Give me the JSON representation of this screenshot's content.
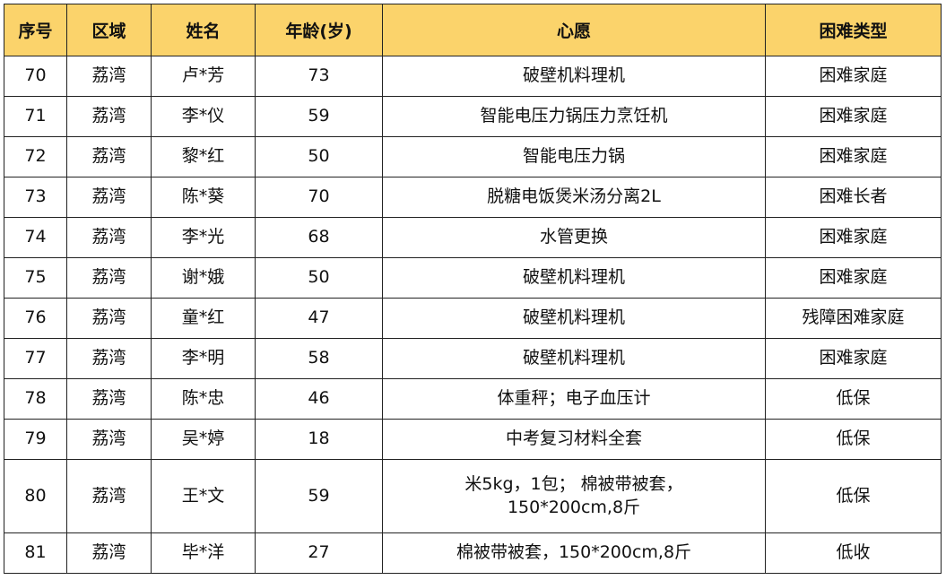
{
  "header": {
    "cols": [
      "序号",
      "区域",
      "姓名",
      "年龄(岁)",
      "心愿",
      "困难类型"
    ],
    "background": "#FBD36B"
  },
  "rows": [
    {
      "no": "70",
      "area": "荔湾",
      "name": "卢*芳",
      "age": "73",
      "wish": "破壁机料理机",
      "type": "困难家庭"
    },
    {
      "no": "71",
      "area": "荔湾",
      "name": "李*仪",
      "age": "59",
      "wish": "智能电压力锅压力烹饪机",
      "type": "困难家庭"
    },
    {
      "no": "72",
      "area": "荔湾",
      "name": "黎*红",
      "age": "50",
      "wish": "智能电压力锅",
      "type": "困难家庭"
    },
    {
      "no": "73",
      "area": "荔湾",
      "name": "陈*葵",
      "age": "70",
      "wish": "脱糖电饭煲米汤分离2L",
      "type": "困难长者"
    },
    {
      "no": "74",
      "area": "荔湾",
      "name": "李*光",
      "age": "68",
      "wish": "水管更换",
      "type": "困难家庭"
    },
    {
      "no": "75",
      "area": "荔湾",
      "name": "谢*娥",
      "age": "50",
      "wish": "破壁机料理机",
      "type": "困难家庭"
    },
    {
      "no": "76",
      "area": "荔湾",
      "name": "童*红",
      "age": "47",
      "wish": "破壁机料理机",
      "type": "残障困难家庭"
    },
    {
      "no": "77",
      "area": "荔湾",
      "name": "李*明",
      "age": "58",
      "wish": "破壁机料理机",
      "type": "困难家庭"
    },
    {
      "no": "78",
      "area": "荔湾",
      "name": "陈*忠",
      "age": "46",
      "wish": "体重秤；电子血压计",
      "type": "低保"
    },
    {
      "no": "79",
      "area": "荔湾",
      "name": "吴*婷",
      "age": "18",
      "wish": "中考复习材料全套",
      "type": "低保"
    },
    {
      "no": "80",
      "area": "荔湾",
      "name": "王*文",
      "age": "59",
      "wish": "米5kg，1包； 棉被带被套，\n150*200cm,8斤",
      "type": "低保"
    },
    {
      "no": "81",
      "area": "荔湾",
      "name": "毕*洋",
      "age": "27",
      "wish": "棉被带被套，150*200cm,8斤",
      "type": "低收"
    }
  ]
}
